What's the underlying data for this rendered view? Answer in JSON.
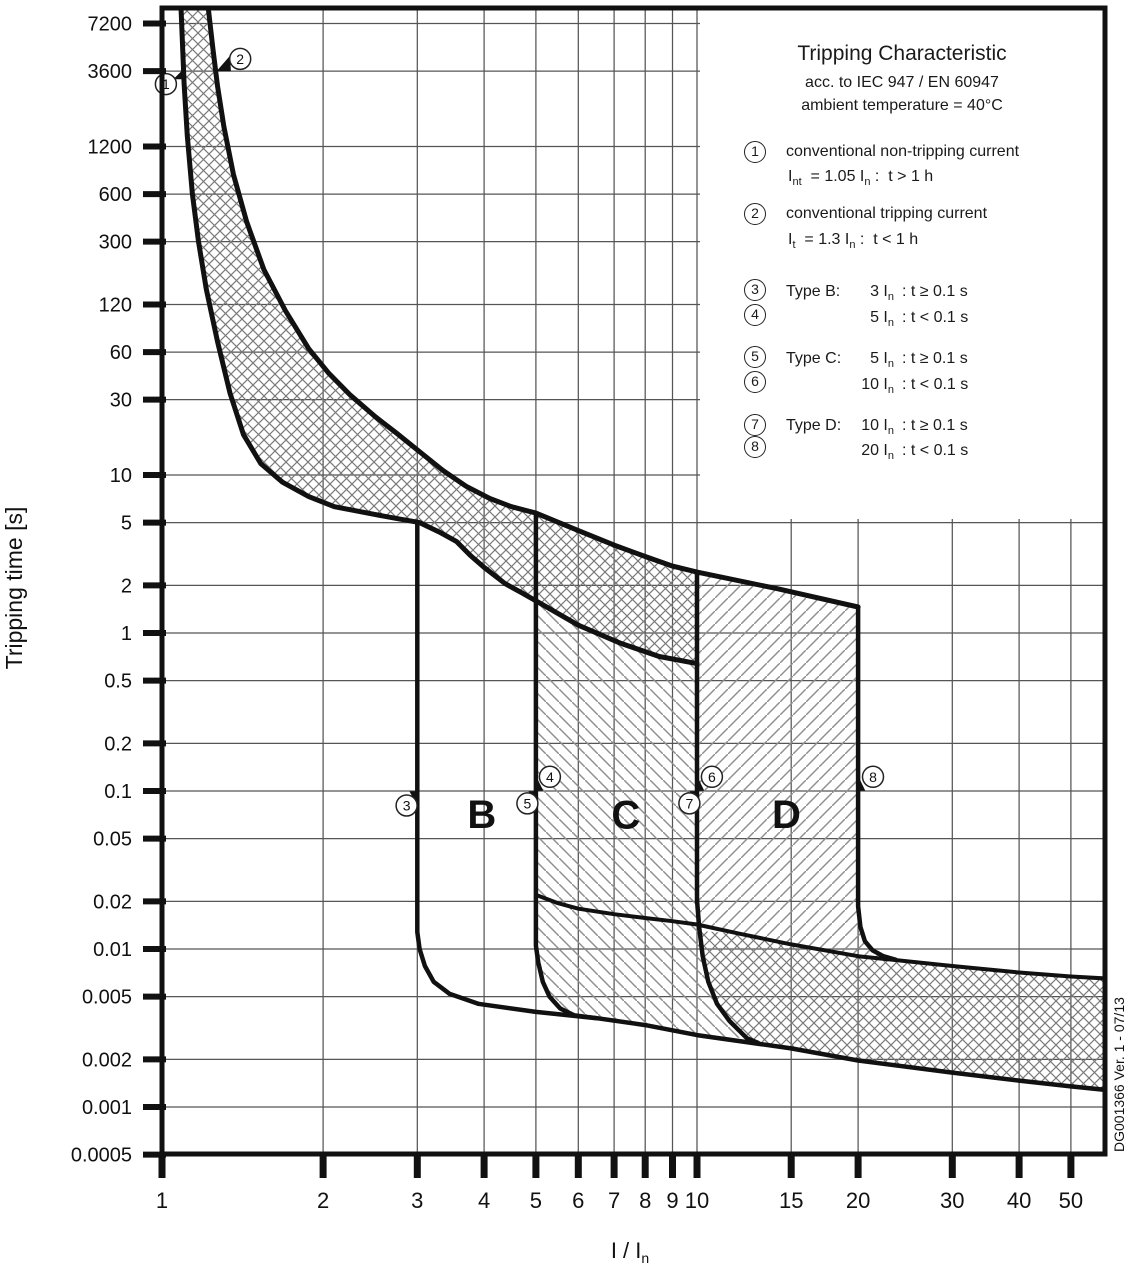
{
  "legend": {
    "title": "Tripping Characteristic",
    "subtitle1": "acc. to IEC 947 / EN 60947",
    "subtitle2": "ambient temperature = 40°C",
    "defs": [
      {
        "num": "1",
        "line1": "conventional non-tripping current",
        "line2": "I~nt~  = 1.05 I~n~ :  t > 1 h"
      },
      {
        "num": "2",
        "line1": "conventional tripping current",
        "line2": "I~t~  = 1.3 I~n~ :  t < 1 h"
      }
    ],
    "rows": [
      {
        "num": "3",
        "label": "Type B:",
        "mult": "3 I~n~",
        "cond": ": t ≥ 0.1 s"
      },
      {
        "num": "4",
        "label": "",
        "mult": "5 I~n~",
        "cond": ": t < 0.1 s"
      },
      {
        "num": "5",
        "label": "Type C:",
        "mult": "5 I~n~",
        "cond": ": t ≥ 0.1 s"
      },
      {
        "num": "6",
        "label": "",
        "mult": "10 I~n~",
        "cond": ": t < 0.1 s"
      },
      {
        "num": "7",
        "label": "Type D:",
        "mult": "10 I~n~",
        "cond": ": t ≥ 0.1 s"
      },
      {
        "num": "8",
        "label": "",
        "mult": "20 I~n~",
        "cond": ": t < 0.1 s"
      }
    ]
  },
  "doc_number": "DG001366 Ver. 1 - 07/13",
  "chart_data": {
    "type": "line",
    "scale": "log-log",
    "grid": "on",
    "x_axis": {
      "title": "I / I~n~",
      "ticks": [
        "1",
        "2",
        "3",
        "4",
        "5",
        "6",
        "7",
        "8",
        "9",
        "10",
        "15",
        "20",
        "30",
        "40",
        "50"
      ],
      "range": [
        1,
        58
      ]
    },
    "y_axis": {
      "title": "Tripping time [s]",
      "ticks": [
        "7200",
        "3600",
        "1200",
        "600",
        "300",
        "120",
        "60",
        "30",
        "10",
        "5",
        "2",
        "1",
        "0.5",
        "0.2",
        "0.1",
        "0.05",
        "0.02",
        "0.01",
        "0.005",
        "0.002",
        "0.001",
        "0.0005"
      ],
      "range": [
        0.0005,
        9100
      ]
    },
    "curves": [
      {
        "name": "thermal-upper-limit",
        "w": 5,
        "pts": [
          [
            1.22,
            9100
          ],
          [
            1.245,
            5000
          ],
          [
            1.27,
            2900
          ],
          [
            1.305,
            1600
          ],
          [
            1.36,
            800
          ],
          [
            1.44,
            400
          ],
          [
            1.55,
            200
          ],
          [
            1.7,
            110
          ],
          [
            1.88,
            63
          ],
          [
            2.05,
            44
          ],
          [
            2.25,
            32
          ],
          [
            2.5,
            23.5
          ],
          [
            2.75,
            18.3
          ],
          [
            3.05,
            13.8
          ],
          [
            3.35,
            10.7
          ],
          [
            3.7,
            8.5
          ],
          [
            4.1,
            7.1
          ],
          [
            4.5,
            6.3
          ],
          [
            5.0,
            5.74
          ],
          [
            6.0,
            4.45
          ],
          [
            7.0,
            3.6
          ],
          [
            8.0,
            3.05
          ],
          [
            9.0,
            2.65
          ],
          [
            10.0,
            2.43
          ],
          [
            14.1,
            1.91
          ],
          [
            20.0,
            1.46
          ]
        ]
      },
      {
        "name": "thermal-lower-limit",
        "w": 5,
        "pts": [
          [
            1.085,
            9100
          ],
          [
            1.1,
            3000
          ],
          [
            1.115,
            1400
          ],
          [
            1.14,
            600
          ],
          [
            1.17,
            300
          ],
          [
            1.21,
            150
          ],
          [
            1.27,
            70
          ],
          [
            1.34,
            33
          ],
          [
            1.42,
            18
          ],
          [
            1.53,
            11.8
          ],
          [
            1.68,
            9.0
          ],
          [
            1.88,
            7.3
          ],
          [
            2.1,
            6.3
          ],
          [
            2.45,
            5.7
          ],
          [
            2.75,
            5.3
          ],
          [
            3.03,
            5.0
          ],
          [
            3.3,
            4.35
          ],
          [
            3.55,
            3.8
          ],
          [
            3.77,
            3.1
          ],
          [
            4.0,
            2.6
          ],
          [
            4.38,
            2.05
          ],
          [
            4.7,
            1.8
          ],
          [
            5.08,
            1.55
          ],
          [
            6.0,
            1.12
          ],
          [
            7.2,
            0.86
          ],
          [
            8.5,
            0.71
          ],
          [
            10.0,
            0.64
          ]
        ]
      },
      {
        "name": "type-b-lower-3in",
        "w": 4.5,
        "pts": [
          [
            3,
            5.0
          ],
          [
            3,
            0.0128
          ],
          [
            3.03,
            0.01
          ],
          [
            3.1,
            0.0078
          ],
          [
            3.22,
            0.0062
          ],
          [
            3.45,
            0.0052
          ],
          [
            3.9,
            0.0045
          ]
        ]
      },
      {
        "name": "instantaneous-lower-bound",
        "w": 4.5,
        "pts": [
          [
            3.9,
            0.0045
          ],
          [
            5,
            0.004
          ],
          [
            6.5,
            0.00365
          ],
          [
            8,
            0.0033
          ],
          [
            10,
            0.00285
          ],
          [
            15,
            0.00235
          ],
          [
            20,
            0.00197
          ],
          [
            30,
            0.00165
          ],
          [
            40,
            0.00147
          ],
          [
            50,
            0.00135
          ],
          [
            58.6,
            0.00128
          ]
        ]
      },
      {
        "name": "type-c-lower-5in",
        "w": 4.5,
        "pts": [
          [
            5,
            5.74
          ],
          [
            5,
            0.0105
          ],
          [
            5.05,
            0.0082
          ],
          [
            5.15,
            0.0062
          ],
          [
            5.3,
            0.005
          ],
          [
            5.55,
            0.0042
          ],
          [
            5.9,
            0.0038
          ],
          [
            6.5,
            0.00365
          ]
        ]
      },
      {
        "name": "instantaneous-mid-bound",
        "w": 4,
        "pts": [
          [
            5,
            0.022
          ],
          [
            5.5,
            0.0195
          ],
          [
            6,
            0.018
          ],
          [
            7,
            0.0166
          ],
          [
            8,
            0.0157
          ],
          [
            9,
            0.015
          ],
          [
            10,
            0.0143
          ],
          [
            12,
            0.0125
          ],
          [
            15,
            0.0107
          ],
          [
            20,
            0.009
          ],
          [
            30,
            0.0078
          ],
          [
            40,
            0.0071
          ],
          [
            50,
            0.0067
          ],
          [
            58.6,
            0.0065
          ]
        ]
      },
      {
        "name": "type-d-lower-10in",
        "w": 4.5,
        "pts": [
          [
            10,
            2.43
          ],
          [
            10,
            0.0203
          ],
          [
            10.1,
            0.0135
          ],
          [
            10.25,
            0.009
          ],
          [
            10.5,
            0.0062
          ],
          [
            10.9,
            0.0045
          ],
          [
            11.5,
            0.0035
          ],
          [
            12.4,
            0.00272
          ],
          [
            13.0,
            0.00255
          ]
        ]
      },
      {
        "name": "type-d-upper-20in",
        "w": 4.5,
        "pts": [
          [
            20,
            1.46
          ],
          [
            20,
            0.0186
          ],
          [
            20.2,
            0.0138
          ],
          [
            20.6,
            0.0112
          ],
          [
            21.3,
            0.0098
          ],
          [
            22.3,
            0.009
          ],
          [
            23.5,
            0.00855
          ]
        ]
      }
    ],
    "regions": [
      {
        "name": "thermal-band",
        "pattern": "cross",
        "pts": [
          [
            1.22,
            9100
          ],
          [
            1.245,
            5000
          ],
          [
            1.27,
            2900
          ],
          [
            1.305,
            1600
          ],
          [
            1.36,
            800
          ],
          [
            1.44,
            400
          ],
          [
            1.55,
            200
          ],
          [
            1.7,
            110
          ],
          [
            1.88,
            63
          ],
          [
            2.05,
            44
          ],
          [
            2.25,
            32
          ],
          [
            2.5,
            23.5
          ],
          [
            2.75,
            18.3
          ],
          [
            3.05,
            13.8
          ],
          [
            3.35,
            10.7
          ],
          [
            3.7,
            8.5
          ],
          [
            4.1,
            7.1
          ],
          [
            4.5,
            6.3
          ],
          [
            5.0,
            5.74
          ],
          [
            6.0,
            4.45
          ],
          [
            7.0,
            3.6
          ],
          [
            8.0,
            3.05
          ],
          [
            9.0,
            2.65
          ],
          [
            10.0,
            2.43
          ],
          [
            10.0,
            0.64
          ],
          [
            8.5,
            0.71
          ],
          [
            7.2,
            0.86
          ],
          [
            6.0,
            1.12
          ],
          [
            5.08,
            1.55
          ],
          [
            4.7,
            1.8
          ],
          [
            4.38,
            2.05
          ],
          [
            4.0,
            2.6
          ],
          [
            3.77,
            3.1
          ],
          [
            3.55,
            3.8
          ],
          [
            3.3,
            4.35
          ],
          [
            3.03,
            5.0
          ],
          [
            2.75,
            5.3
          ],
          [
            2.45,
            5.7
          ],
          [
            2.1,
            6.3
          ],
          [
            1.88,
            7.3
          ],
          [
            1.68,
            9.0
          ],
          [
            1.53,
            11.8
          ],
          [
            1.42,
            18
          ],
          [
            1.34,
            33
          ],
          [
            1.27,
            70
          ],
          [
            1.21,
            150
          ],
          [
            1.17,
            300
          ],
          [
            1.14,
            600
          ],
          [
            1.115,
            1400
          ],
          [
            1.1,
            3000
          ],
          [
            1.085,
            9100
          ]
        ]
      },
      {
        "name": "type-c-zone",
        "pattern": "down",
        "pts": [
          [
            5,
            1.55
          ],
          [
            6,
            1.12
          ],
          [
            7.2,
            0.86
          ],
          [
            8.5,
            0.71
          ],
          [
            10,
            0.64
          ],
          [
            10,
            0.0203
          ],
          [
            10.1,
            0.0135
          ],
          [
            10.25,
            0.009
          ],
          [
            10.5,
            0.0062
          ],
          [
            10.9,
            0.0045
          ],
          [
            11.5,
            0.0035
          ],
          [
            12.4,
            0.00272
          ],
          [
            10,
            0.00285
          ],
          [
            8,
            0.0033
          ],
          [
            6.5,
            0.00365
          ],
          [
            5.9,
            0.0038
          ],
          [
            5.55,
            0.0042
          ],
          [
            5.3,
            0.005
          ],
          [
            5.15,
            0.0062
          ],
          [
            5.05,
            0.0082
          ],
          [
            5,
            0.0105
          ]
        ]
      },
      {
        "name": "type-d-zone",
        "pattern": "up",
        "pts": [
          [
            10,
            2.43
          ],
          [
            14.1,
            1.91
          ],
          [
            20,
            1.46
          ],
          [
            20,
            0.0186
          ],
          [
            20.2,
            0.0138
          ],
          [
            20.6,
            0.0112
          ],
          [
            21.3,
            0.0098
          ],
          [
            22.3,
            0.009
          ],
          [
            23.5,
            0.00855
          ],
          [
            20,
            0.009
          ],
          [
            15,
            0.0107
          ],
          [
            12,
            0.0125
          ],
          [
            10,
            0.0143
          ]
        ]
      },
      {
        "name": "instantaneous-band",
        "pattern": "cross",
        "pts": [
          [
            10.15,
            0.013
          ],
          [
            12,
            0.0125
          ],
          [
            15,
            0.0107
          ],
          [
            20,
            0.009
          ],
          [
            30,
            0.0078
          ],
          [
            40,
            0.0071
          ],
          [
            50,
            0.0067
          ],
          [
            58.6,
            0.0065
          ],
          [
            58.6,
            0.00128
          ],
          [
            50,
            0.00135
          ],
          [
            40,
            0.00147
          ],
          [
            30,
            0.00165
          ],
          [
            20,
            0.00197
          ],
          [
            15,
            0.00235
          ],
          [
            12.4,
            0.00272
          ],
          [
            11.5,
            0.0035
          ],
          [
            10.9,
            0.0045
          ],
          [
            10.5,
            0.0062
          ],
          [
            10.25,
            0.009
          ],
          [
            10.1,
            0.0135
          ]
        ]
      }
    ],
    "region_labels": [
      {
        "text": "B",
        "x": 3.96,
        "t": 0.0714
      },
      {
        "text": "C",
        "x": 7.36,
        "t": 0.0711
      },
      {
        "text": "D",
        "x": 14.7,
        "t": 0.0714
      }
    ],
    "markers": [
      {
        "num": "1",
        "x": 1.017,
        "t": 2980,
        "tri": [
          [
            1.05,
            3200
          ],
          [
            1.105,
            3800
          ],
          [
            1.105,
            3200
          ]
        ]
      },
      {
        "num": "2",
        "x": 1.4,
        "t": 4300,
        "tri": [
          [
            1.265,
            3600
          ],
          [
            1.34,
            4500
          ],
          [
            1.345,
            3600
          ]
        ]
      },
      {
        "num": "3",
        "x": 2.865,
        "t": 0.081,
        "tri": [
          [
            2.9,
            0.0995
          ],
          [
            3.0,
            0.0995
          ],
          [
            3.0,
            0.08
          ]
        ]
      },
      {
        "num": "4",
        "x": 5.31,
        "t": 0.123,
        "tri": [
          [
            5.0,
            0.125
          ],
          [
            5.16,
            0.1005
          ],
          [
            5.0,
            0.1005
          ]
        ]
      },
      {
        "num": "5",
        "x": 4.82,
        "t": 0.0835,
        "tri": [
          [
            4.84,
            0.0995
          ],
          [
            5.0,
            0.0995
          ],
          [
            5.0,
            0.08
          ]
        ]
      },
      {
        "num": "6",
        "x": 10.66,
        "t": 0.123,
        "tri": [
          [
            10.0,
            0.125
          ],
          [
            10.32,
            0.1005
          ],
          [
            10.0,
            0.1005
          ]
        ]
      },
      {
        "num": "7",
        "x": 9.68,
        "t": 0.0835,
        "tri": [
          [
            9.68,
            0.0995
          ],
          [
            10.0,
            0.0995
          ],
          [
            10.0,
            0.08
          ]
        ]
      },
      {
        "num": "8",
        "x": 21.33,
        "t": 0.123,
        "tri": [
          [
            20.0,
            0.125
          ],
          [
            20.63,
            0.1005
          ],
          [
            20.0,
            0.1005
          ]
        ]
      }
    ]
  }
}
